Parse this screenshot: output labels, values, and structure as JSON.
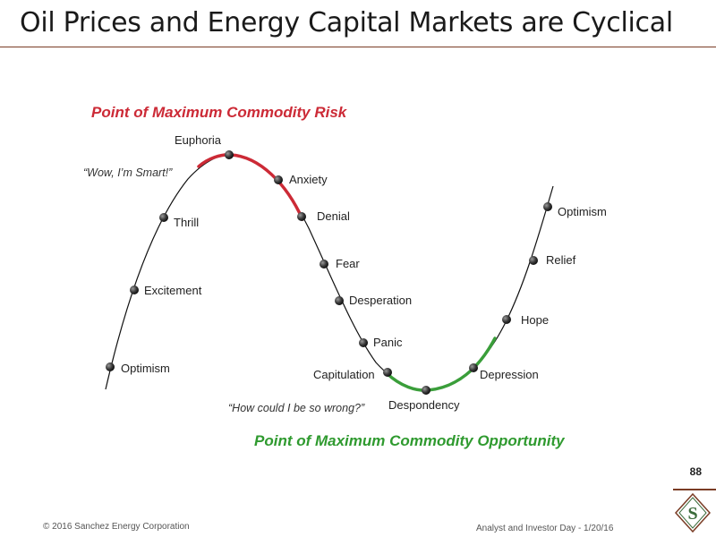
{
  "slide": {
    "title": "Oil Prices and Energy Capital Markets are Cyclical",
    "page_number": "88"
  },
  "diagram": {
    "risk_label": "Point of Maximum Commodity Risk",
    "opportunity_label": "Point of Maximum Commodity Opportunity",
    "quote_top": "“Wow, I’m Smart!”",
    "quote_bottom": "“How could I be so wrong?”",
    "stages": [
      "Optimism",
      "Excitement",
      "Thrill",
      "Euphoria",
      "Anxiety",
      "Denial",
      "Fear",
      "Desperation",
      "Panic",
      "Capitulation",
      "Despondency",
      "Depression",
      "Hope",
      "Relief",
      "Optimism"
    ],
    "colors": {
      "risk": "#cc2a36",
      "opportunity": "#3a9e3a",
      "curve": "#111111",
      "dot": "#333333"
    }
  },
  "footer": {
    "copyright": "© 2016 Sanchez Energy Corporation",
    "event": "Analyst and Investor Day - 1/20/16",
    "logo_letter": "S"
  }
}
